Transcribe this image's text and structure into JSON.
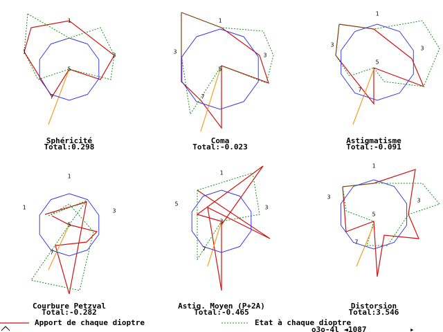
{
  "panels": [
    {
      "title": "Sphéricité",
      "total": "Total:0.298",
      "labels": [
        "1",
        "1",
        "3",
        "5",
        "7"
      ]
    },
    {
      "title": "Coma",
      "total": "Total:-0.023",
      "labels": [
        "1",
        "3",
        "3",
        "5",
        "7"
      ]
    },
    {
      "title": "Astigmatisme",
      "total": "Total:-0.091",
      "labels": [
        "1",
        "3",
        "3",
        "5",
        "7"
      ]
    },
    {
      "title": "Courbure Petzval",
      "total": "Total:-0.282",
      "labels": [
        "1",
        "1",
        "3",
        "5",
        "7"
      ]
    },
    {
      "title": "Astig. Moyen (P+2A)",
      "total": "Total:-0.465",
      "labels": [
        "1",
        "5",
        "3",
        "3",
        "7"
      ]
    },
    {
      "title": "Distorsion",
      "total": "Total:3.546",
      "labels": [
        "1",
        "3",
        "3",
        "5",
        "7"
      ]
    }
  ],
  "legend": {
    "red": "Apport de chaque dioptre",
    "green": "Etat à chaque dioptre"
  },
  "status": "o3o-4l ◄1087"
}
